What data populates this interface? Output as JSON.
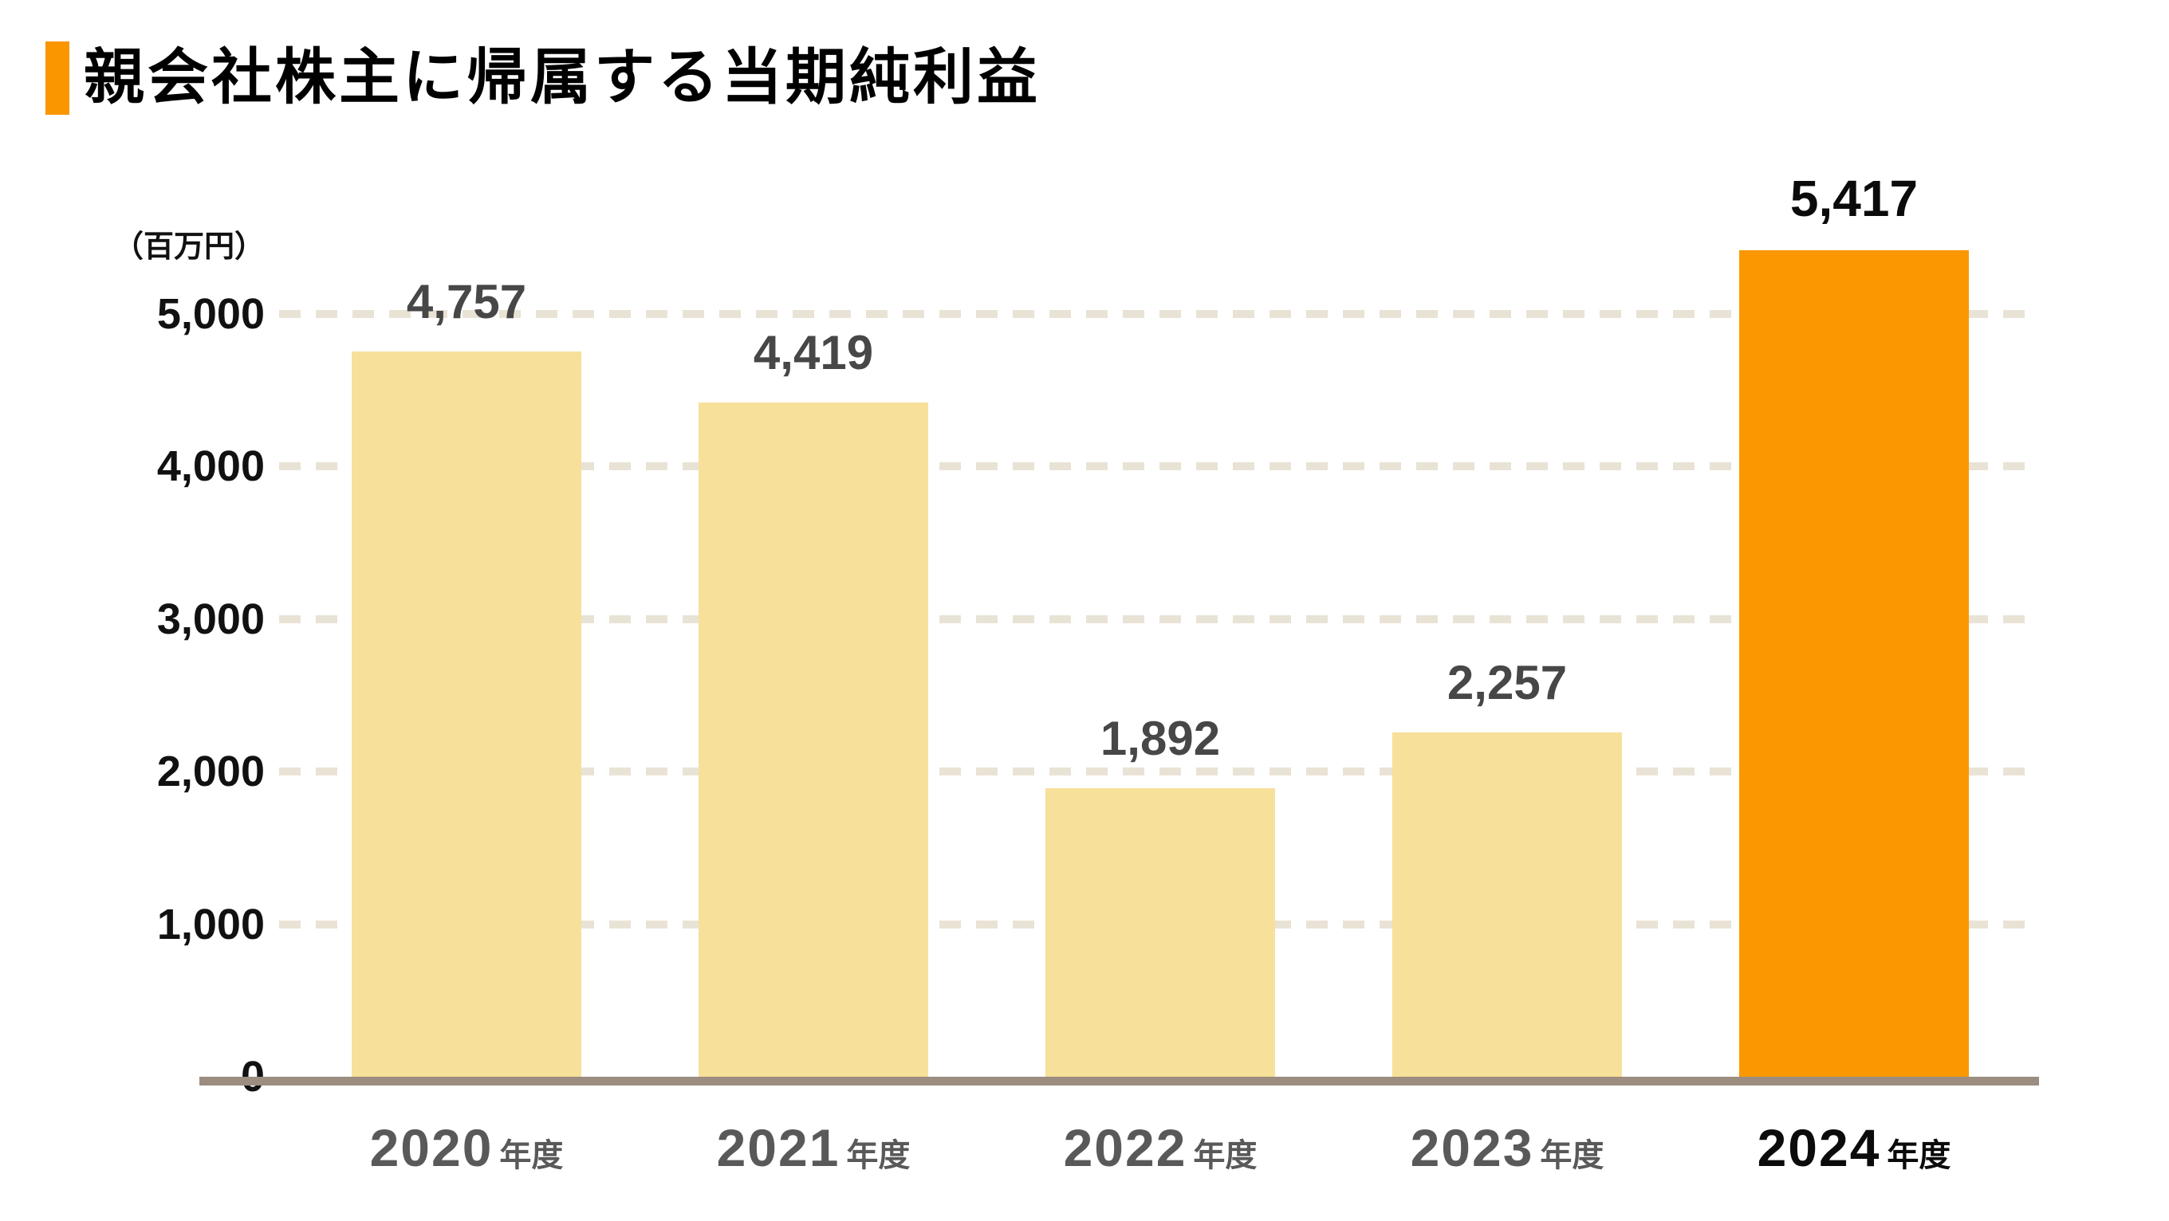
{
  "chart_data": {
    "type": "bar",
    "title": "親会社株主に帰属する当期純利益",
    "unit_label": "（百万円）",
    "categories": [
      {
        "year": "2020",
        "suffix": "年度"
      },
      {
        "year": "2021",
        "suffix": "年度"
      },
      {
        "year": "2022",
        "suffix": "年度"
      },
      {
        "year": "2023",
        "suffix": "年度"
      },
      {
        "year": "2024",
        "suffix": "年度"
      }
    ],
    "values": [
      4757,
      4419,
      1892,
      2257,
      5417
    ],
    "value_labels": [
      "4,757",
      "4,419",
      "1,892",
      "2,257",
      "5,417"
    ],
    "ytick_values": [
      0,
      1000,
      2000,
      3000,
      4000,
      5000
    ],
    "ytick_labels": [
      "0",
      "1,000",
      "2,000",
      "3,000",
      "4,000",
      "5,000"
    ],
    "ylim": [
      0,
      5417
    ],
    "grid": "horizontal-dashed",
    "legend": "none",
    "highlight_index": 4,
    "colors": {
      "bar_default": "#F7E09A",
      "bar_highlight": "#FB9700",
      "gridline": "#E9E3D6",
      "baseline": "#9C8D80",
      "value_label": "#474747",
      "value_label_highlight": "#0B0B0B",
      "x_label": "#595959",
      "x_label_highlight": "#0B0B0B",
      "y_label": "#111111",
      "title_marker": "#FA9600"
    }
  }
}
